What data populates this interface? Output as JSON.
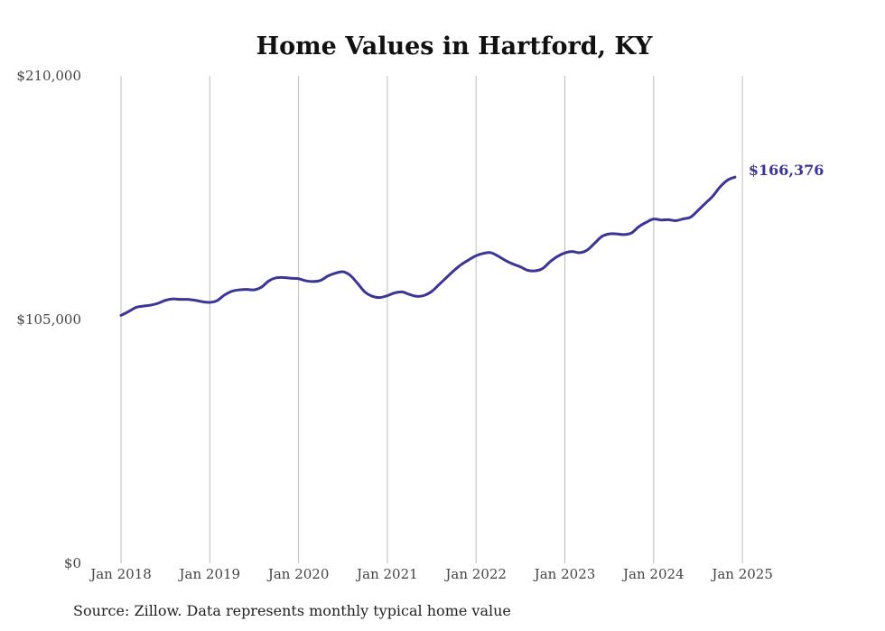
{
  "chart_data": {
    "type": "line",
    "title": "Home Values in Hartford, KY",
    "xlabel": "",
    "ylabel": "",
    "ylim": [
      0,
      210000
    ],
    "y_ticks": [
      0,
      105000,
      210000
    ],
    "y_tick_labels": [
      "$0",
      "$105,000",
      "$210,000"
    ],
    "x_ticks": [
      "Jan 2018",
      "Jan 2019",
      "Jan 2020",
      "Jan 2021",
      "Jan 2022",
      "Jan 2023",
      "Jan 2024",
      "Jan 2025"
    ],
    "grid": "vertical",
    "series": [
      {
        "name": "Typical home value",
        "color": "#3b3596",
        "start": "Jan 2018",
        "frequency": "monthly",
        "values": [
          106800,
          108400,
          110200,
          110800,
          111200,
          112000,
          113300,
          113900,
          113700,
          113700,
          113300,
          112700,
          112400,
          113200,
          115600,
          117200,
          117800,
          118000,
          117800,
          119000,
          121700,
          123000,
          123100,
          122800,
          122600,
          121700,
          121400,
          121900,
          123800,
          125000,
          125600,
          124000,
          120500,
          116800,
          115000,
          114500,
          115300,
          116500,
          116900,
          115800,
          115000,
          115400,
          117100,
          120100,
          123100,
          126100,
          128700,
          130700,
          132500,
          133500,
          133800,
          132300,
          130400,
          128900,
          127700,
          126200,
          126000,
          127000,
          129900,
          132200,
          133700,
          134300,
          133800,
          134900,
          137800,
          140800,
          141900,
          141900,
          141600,
          142300,
          145000,
          146900,
          148300,
          147900,
          148000,
          147600,
          148400,
          149100,
          152000,
          155100,
          158200,
          162200,
          165100,
          166376
        ]
      }
    ],
    "last_value_label": "$166,376"
  },
  "source_note": "Source: Zillow. Data represents monthly typical home value"
}
